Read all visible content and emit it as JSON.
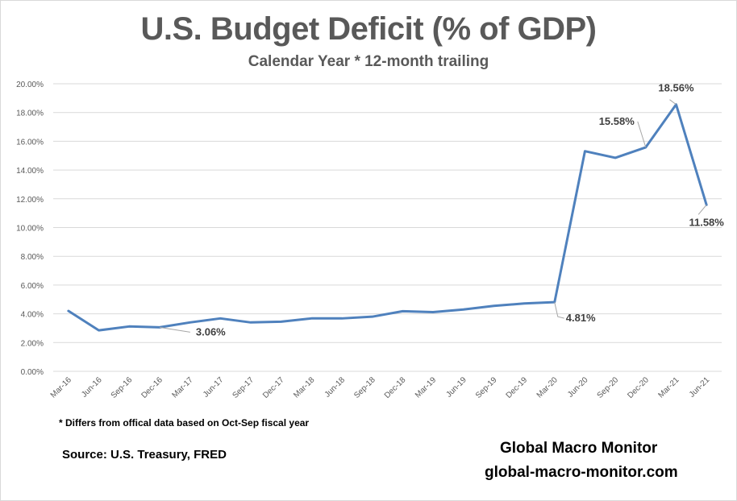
{
  "chart_data": {
    "type": "line",
    "title": "U.S. Budget Deficit (% of GDP)",
    "subtitle": "Calendar Year * 12-month trailing",
    "xlabel": "",
    "ylabel": "",
    "ylim": [
      0,
      20
    ],
    "y_ticks": [
      0,
      2,
      4,
      6,
      8,
      10,
      12,
      14,
      16,
      18,
      20
    ],
    "y_tick_labels": [
      "0.00%",
      "2.00%",
      "4.00%",
      "6.00%",
      "8.00%",
      "10.00%",
      "12.00%",
      "14.00%",
      "16.00%",
      "18.00%",
      "20.00%"
    ],
    "grid": true,
    "legend": "none",
    "categories": [
      "Mar-16",
      "Jun-16",
      "Sep-16",
      "Dec-16",
      "Mar-17",
      "Jun-17",
      "Sep-17",
      "Dec-17",
      "Mar-18",
      "Jun-18",
      "Sep-18",
      "Dec-18",
      "Mar-19",
      "Jun-19",
      "Sep-19",
      "Dec-19",
      "Mar-20",
      "Jun-20",
      "Sep-20",
      "Dec-20",
      "Mar-21",
      "Jun-21"
    ],
    "series": [
      {
        "name": "Budget Deficit % of GDP",
        "color": "#4f81bd",
        "values": [
          4.2,
          2.85,
          3.12,
          3.06,
          3.4,
          3.68,
          3.4,
          3.45,
          3.68,
          3.68,
          3.8,
          4.18,
          4.12,
          4.3,
          4.55,
          4.72,
          4.81,
          15.31,
          14.85,
          15.58,
          18.56,
          11.58
        ]
      }
    ],
    "annotations": [
      {
        "category": "Dec-16",
        "text": "3.06%"
      },
      {
        "category": "Mar-20",
        "text": "4.81%"
      },
      {
        "category": "Dec-20",
        "text": "15.58%"
      },
      {
        "category": "Mar-21",
        "text": "18.56%"
      },
      {
        "category": "Jun-21",
        "text": "11.58%"
      }
    ]
  },
  "footer": {
    "footnote": "* Differs from offical data based on Oct-Sep fiscal year",
    "source": "Source:  U.S. Treasury,  FRED",
    "brand": "Global Macro Monitor",
    "website": "global-macro-monitor.com"
  }
}
